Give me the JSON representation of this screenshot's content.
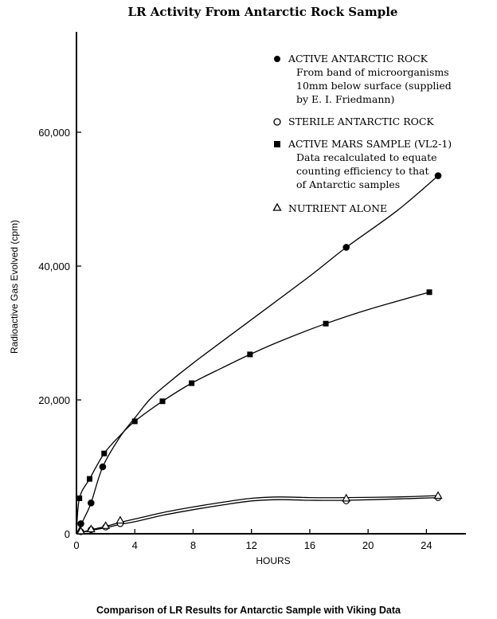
{
  "chart_data": {
    "type": "line",
    "title": "LR Activity From Antarctic Rock Sample",
    "caption": "Comparison of LR Results for Antarctic Sample with Viking Data",
    "xlabel": "HOURS",
    "ylabel": "Radioactive Gas Evolved (cpm)",
    "xlim": [
      0,
      26
    ],
    "ylim": [
      0,
      75000
    ],
    "xticks": [
      0,
      4,
      8,
      12,
      16,
      20,
      24
    ],
    "xtick_labels": [
      "0",
      "4",
      "8",
      "12",
      "16",
      "20",
      "24"
    ],
    "yticks": [
      0,
      20000,
      40000,
      60000
    ],
    "ytick_labels": [
      "0",
      "20,000",
      "40,000",
      "60,000"
    ],
    "legend_position": "top-right",
    "series": [
      {
        "name": "ACTIVE ANTARCTIC ROCK",
        "description": [
          "From band of microorganisms",
          "10mm below surface (supplied",
          "by E. I. Friedmann)"
        ],
        "marker": "filled-circle",
        "x": [
          0.3,
          1.0,
          1.8,
          18.5,
          24.8
        ],
        "y": [
          1500,
          4600,
          10000,
          42800,
          53500
        ],
        "curve_x": [
          0,
          0.5,
          1.0,
          1.8,
          3,
          4,
          5,
          6,
          8,
          12,
          16,
          18.5,
          22,
          24.8
        ],
        "curve_y": [
          0,
          2200,
          4600,
          10000,
          14500,
          17300,
          20000,
          22000,
          25500,
          32000,
          38500,
          42800,
          48300,
          53500
        ]
      },
      {
        "name": "STERILE ANTARCTIC ROCK",
        "marker": "open-circle",
        "x": [
          0.3,
          1.0,
          2.0,
          3.0,
          18.5,
          24.8
        ],
        "y": [
          300,
          600,
          1000,
          1500,
          4900,
          5400
        ],
        "curve_x": [
          0,
          1,
          2,
          3,
          4,
          6,
          8,
          10,
          12,
          14,
          16,
          18.5,
          22,
          24.8
        ],
        "curve_y": [
          0,
          500,
          900,
          1400,
          1800,
          2800,
          3600,
          4300,
          4900,
          5100,
          5000,
          5000,
          5200,
          5400
        ]
      },
      {
        "name": "ACTIVE MARS SAMPLE (VL2-1)",
        "description": [
          "Data recalculated to equate",
          "counting efficiency to that",
          "of Antarctic samples"
        ],
        "marker": "filled-square",
        "x": [
          0.2,
          0.9,
          1.9,
          4.0,
          5.9,
          7.9,
          11.9,
          17.1,
          24.2
        ],
        "y": [
          5300,
          8200,
          12000,
          16800,
          19800,
          22500,
          26800,
          31400,
          36100
        ],
        "curve_x": [
          0,
          0.2,
          0.9,
          1.9,
          3,
          4.0,
          5.9,
          7.9,
          10,
          11.9,
          14,
          17.1,
          20,
          24.2
        ],
        "curve_y": [
          0,
          5300,
          8200,
          12000,
          14700,
          16800,
          19800,
          22500,
          24800,
          26800,
          28800,
          31400,
          33500,
          36100
        ]
      },
      {
        "name": "NUTRIENT ALONE",
        "marker": "open-triangle",
        "x": [
          0.3,
          1.0,
          2.0,
          3.0,
          18.5,
          24.8
        ],
        "y": [
          400,
          700,
          1200,
          2000,
          5300,
          5700
        ],
        "curve_x": [
          0,
          1,
          2,
          3,
          4,
          6,
          8,
          10,
          12,
          14,
          16,
          18.5,
          22,
          24.8
        ],
        "curve_y": [
          0,
          600,
          1100,
          1700,
          2200,
          3200,
          4000,
          4700,
          5300,
          5500,
          5400,
          5400,
          5500,
          5700
        ]
      }
    ]
  }
}
